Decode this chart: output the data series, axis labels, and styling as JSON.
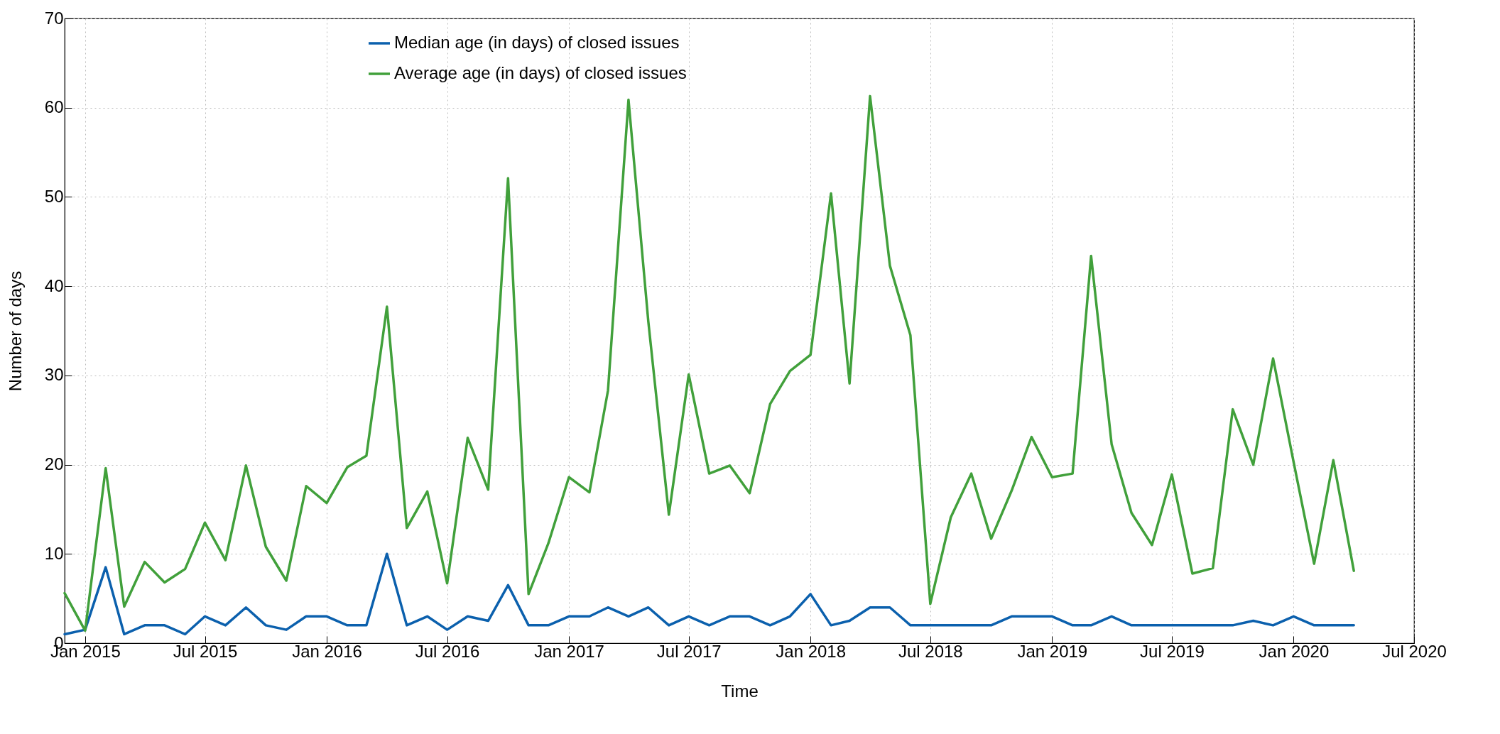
{
  "chart_data": {
    "type": "line",
    "xlabel": "Time",
    "ylabel": "Number of days",
    "x": [
      "2014-12",
      "2015-01",
      "2015-02",
      "2015-03",
      "2015-04",
      "2015-05",
      "2015-06",
      "2015-07",
      "2015-08",
      "2015-09",
      "2015-10",
      "2015-11",
      "2015-12",
      "2016-01",
      "2016-02",
      "2016-03",
      "2016-04",
      "2016-05",
      "2016-06",
      "2016-07",
      "2016-08",
      "2016-09",
      "2016-10",
      "2016-11",
      "2016-12",
      "2017-01",
      "2017-02",
      "2017-03",
      "2017-04",
      "2017-05",
      "2017-06",
      "2017-07",
      "2017-08",
      "2017-09",
      "2017-10",
      "2017-11",
      "2017-12",
      "2018-01",
      "2018-02",
      "2018-03",
      "2018-04",
      "2018-05",
      "2018-06",
      "2018-07",
      "2018-08",
      "2018-09",
      "2018-10",
      "2018-11",
      "2018-12",
      "2019-01",
      "2019-02",
      "2019-03",
      "2019-04",
      "2019-05",
      "2019-06",
      "2019-07",
      "2019-08",
      "2019-09",
      "2019-10",
      "2019-11",
      "2019-12",
      "2020-01",
      "2020-02",
      "2020-03",
      "2020-04"
    ],
    "series": [
      {
        "name": "Median age (in days) of closed issues",
        "color": "#0b60ad",
        "values": [
          1,
          1.5,
          8.5,
          1,
          2,
          2,
          1,
          3,
          2,
          4,
          2,
          1.5,
          3,
          3,
          2,
          2,
          10,
          2,
          3,
          1.5,
          3,
          2.5,
          6.5,
          2,
          2,
          3,
          3,
          4,
          3,
          4,
          2,
          3,
          2,
          3,
          3,
          2,
          3,
          5.5,
          2,
          2.5,
          4,
          4,
          2,
          2,
          2,
          2,
          2,
          3,
          3,
          3,
          2,
          2,
          3,
          2,
          2,
          2,
          2,
          2,
          2,
          2.5,
          2,
          3,
          2,
          2,
          2
        ]
      },
      {
        "name": "Average age (in days) of closed issues",
        "color": "#41a03b",
        "values": [
          5.6,
          1.4,
          19.6,
          4.1,
          9.1,
          6.8,
          8.3,
          13.5,
          9.3,
          19.9,
          10.8,
          7.0,
          17.6,
          15.7,
          19.7,
          21.0,
          37.7,
          12.9,
          17.0,
          6.7,
          23.0,
          17.2,
          52.1,
          5.5,
          11.2,
          18.6,
          16.9,
          28.3,
          60.9,
          36.0,
          14.4,
          30.1,
          19.0,
          19.9,
          16.8,
          26.8,
          30.5,
          32.3,
          50.4,
          29.1,
          61.3,
          42.3,
          34.5,
          4.4,
          14.1,
          19.0,
          11.7,
          17.1,
          23.1,
          18.6,
          19.0,
          43.4,
          22.3,
          14.6,
          11.0,
          18.9,
          7.8,
          8.4,
          26.2,
          20.0,
          31.9,
          20.3,
          8.9,
          20.5,
          8.1
        ]
      }
    ],
    "xlim": [
      "2014-12",
      "2020-07"
    ],
    "xticks": [
      {
        "value": "2015-01",
        "label": "Jan 2015"
      },
      {
        "value": "2015-07",
        "label": "Jul 2015"
      },
      {
        "value": "2016-01",
        "label": "Jan 2016"
      },
      {
        "value": "2016-07",
        "label": "Jul 2016"
      },
      {
        "value": "2017-01",
        "label": "Jan 2017"
      },
      {
        "value": "2017-07",
        "label": "Jul 2017"
      },
      {
        "value": "2018-01",
        "label": "Jan 2018"
      },
      {
        "value": "2018-07",
        "label": "Jul 2018"
      },
      {
        "value": "2019-01",
        "label": "Jan 2019"
      },
      {
        "value": "2019-07",
        "label": "Jul 2019"
      },
      {
        "value": "2020-01",
        "label": "Jan 2020"
      },
      {
        "value": "2020-07",
        "label": "Jul 2020"
      }
    ],
    "ylim": [
      0,
      70
    ],
    "yticks": [
      0,
      10,
      20,
      30,
      40,
      50,
      60,
      70
    ],
    "grid": true,
    "legend": "top left",
    "line_style": "solid"
  }
}
